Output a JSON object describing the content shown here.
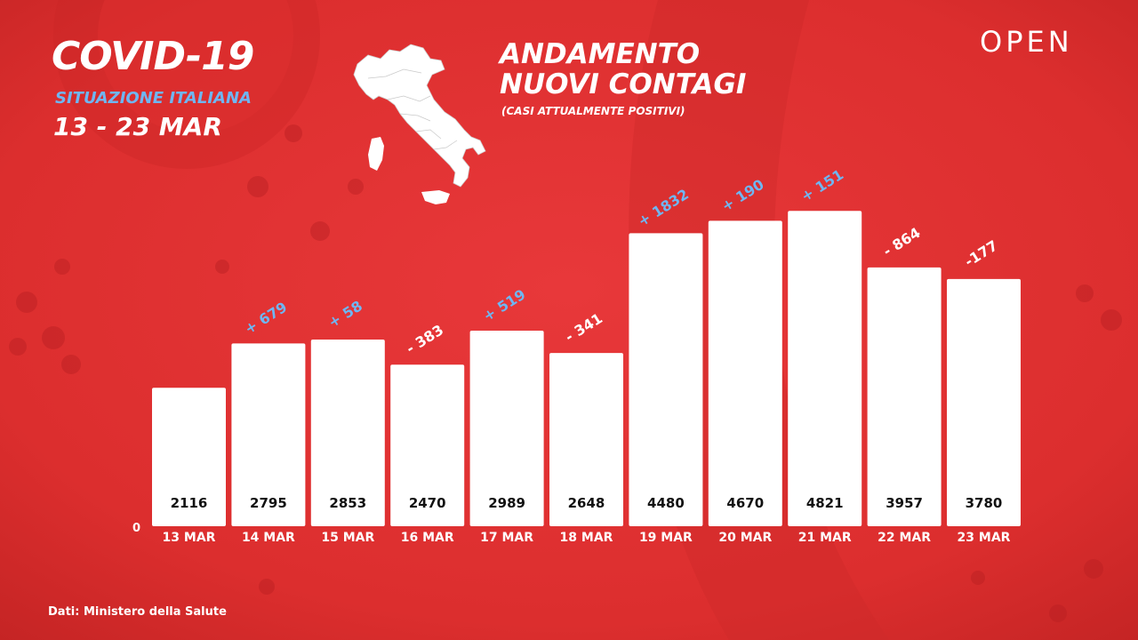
{
  "header": {
    "title": "COVID-19",
    "subtitle": "SITUAZIONE ITALIANA",
    "date_range": "13 - 23 MAR"
  },
  "chart_header": {
    "title_line1": "ANDAMENTO",
    "title_line2": "NUOVI CONTAGI",
    "subtitle": "(CASI ATTUALMENTE POSITIVI)"
  },
  "brand": "OPEN",
  "source": "Dati: Ministero della Salute",
  "colors": {
    "background": "#e0302f",
    "bar": "#ffffff",
    "positive_delta": "#6fb6f2",
    "negative_delta": "#ffffff",
    "value_text": "#111111"
  },
  "chart_data": {
    "type": "bar",
    "title": "ANDAMENTO NUOVI CONTAGI",
    "subtitle": "(CASI ATTUALMENTE POSITIVI)",
    "categories": [
      "13 MAR",
      "14 MAR",
      "15 MAR",
      "16 MAR",
      "17 MAR",
      "18 MAR",
      "19 MAR",
      "20 MAR",
      "21 MAR",
      "22 MAR",
      "23 MAR"
    ],
    "values": [
      2116,
      2795,
      2853,
      2470,
      2989,
      2648,
      4480,
      4670,
      4821,
      3957,
      3780
    ],
    "value_labels": [
      "2116",
      "2795",
      "2853",
      "2470",
      "2989",
      "2648",
      "4480",
      "4670",
      "4821",
      "3957",
      "3780"
    ],
    "delta_labels": [
      "",
      "+ 679",
      "+ 58",
      "- 383",
      "+ 519",
      "- 341",
      "+ 1832",
      "+ 190",
      "+ 151",
      "- 864",
      "-177"
    ],
    "y_zero_label": "0",
    "ylim": [
      0,
      5300
    ],
    "grid": false,
    "legend": "none"
  }
}
